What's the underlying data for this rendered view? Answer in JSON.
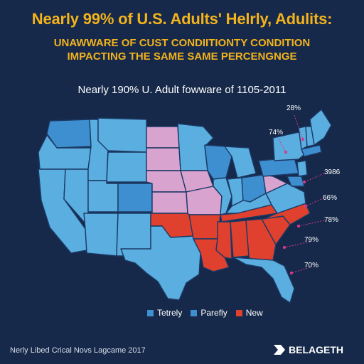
{
  "title": "Nearly 99% of U.S. Adults' Helrly, Adulits:",
  "subtitle_line1": "UNAWWARE OF CUST CONDIITIONTY CONDITION",
  "subtitle_line2": "IMPACTING THE SAME SAME PERCENGNGE",
  "tagline": "Nearly 190% U. Adult fowware of 1105-2011",
  "colors": {
    "background": "#16294a",
    "light_blue": "#5aaee0",
    "blue": "#3e8fd0",
    "pink": "#d9a3cf",
    "red": "#e0402e",
    "border": "#1c3a66",
    "title": "#f2b31c",
    "label_line": "#d63a8c"
  },
  "percent_labels": [
    "28%",
    "74%",
    "3986",
    "66%",
    "78%",
    "79%",
    "70%"
  ],
  "legend": [
    {
      "label": "Tetrely",
      "color": "#3e8fd0"
    },
    {
      "label": "Parefly",
      "color": "#3e8fd0"
    },
    {
      "label": "New",
      "color": "#e0402e"
    }
  ],
  "source": "Nerly Libed Crical Novs Lagcame 2017",
  "brand": "BELAGETH",
  "brand_icon": "brand-logo-icon"
}
